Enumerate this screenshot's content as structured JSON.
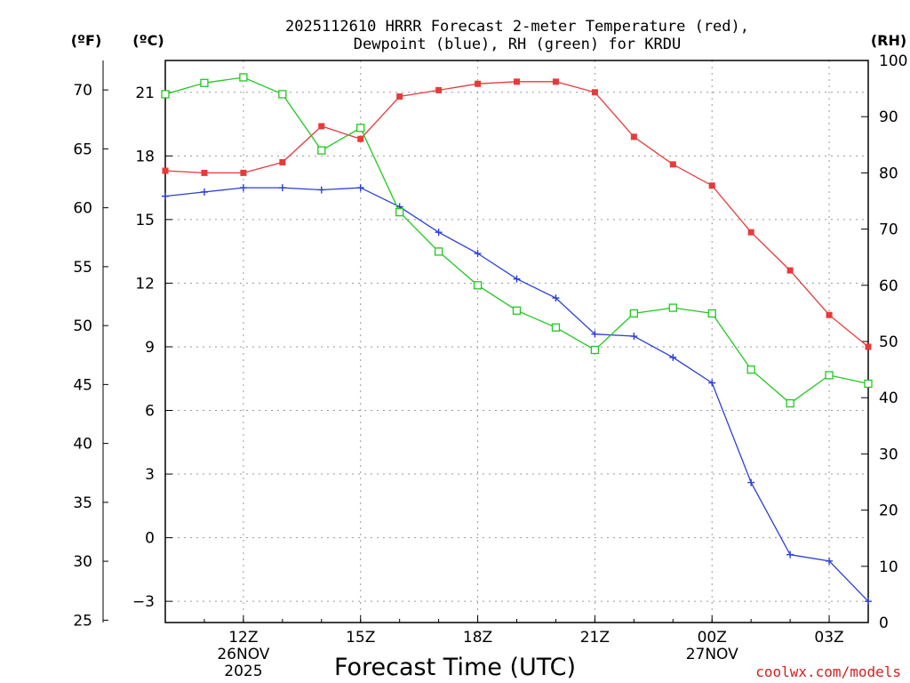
{
  "chart_data": {
    "type": "line",
    "title_line1": "2025112610 HRRR Forecast 2-meter Temperature (red),",
    "title_line2": "Dewpoint (blue), RH (green) for KRDU",
    "xlabel": "Forecast Time (UTC)",
    "credit": "coolwx.com/models",
    "unit_labels": {
      "fahrenheit": "(ºF)",
      "celsius": "(ºC)",
      "rh": "(RH)"
    },
    "x_hours": [
      10,
      11,
      12,
      13,
      14,
      15,
      16,
      17,
      18,
      19,
      20,
      21,
      22,
      23,
      24,
      25,
      26,
      27,
      28
    ],
    "xlim": [
      10,
      28
    ],
    "x_ticks": [
      {
        "hour": 12,
        "label": "12Z",
        "date": "26NOV",
        "year": "2025"
      },
      {
        "hour": 15,
        "label": "15Z",
        "date": "",
        "year": ""
      },
      {
        "hour": 18,
        "label": "18Z",
        "date": "",
        "year": ""
      },
      {
        "hour": 21,
        "label": "21Z",
        "date": "",
        "year": ""
      },
      {
        "hour": 24,
        "label": "00Z",
        "date": "27NOV",
        "year": ""
      },
      {
        "hour": 27,
        "label": "03Z",
        "date": "",
        "year": ""
      }
    ],
    "celsius_axis": {
      "ylim": [
        -4,
        22.5
      ],
      "ticks": [
        "-3",
        "0",
        "3",
        "6",
        "9",
        "12",
        "15",
        "18",
        "21"
      ]
    },
    "fahrenheit_axis": {
      "ticks": [
        "25",
        "30",
        "35",
        "40",
        "45",
        "50",
        "55",
        "60",
        "65",
        "70"
      ]
    },
    "rh_axis": {
      "ylim": [
        0,
        100
      ],
      "ticks": [
        "0",
        "10",
        "20",
        "30",
        "40",
        "50",
        "60",
        "70",
        "80",
        "90",
        "100"
      ]
    },
    "series": [
      {
        "name": "Temperature",
        "axis": "celsius",
        "color": "#e8393b",
        "marker": "filled-square",
        "values": [
          17.3,
          17.2,
          17.2,
          17.7,
          19.4,
          18.8,
          20.8,
          21.1,
          21.4,
          21.5,
          21.5,
          21.0,
          18.9,
          17.6,
          16.6,
          14.4,
          12.6,
          10.5,
          9.0
        ]
      },
      {
        "name": "Dewpoint",
        "axis": "celsius",
        "color": "#2b3fd6",
        "marker": "plus",
        "values": [
          16.1,
          16.3,
          16.5,
          16.5,
          16.4,
          16.5,
          15.6,
          14.4,
          13.4,
          12.2,
          11.3,
          9.6,
          9.5,
          8.5,
          7.3,
          2.6,
          -0.8,
          -1.1,
          -3.0
        ]
      },
      {
        "name": "RH",
        "axis": "rh",
        "color": "#20c820",
        "marker": "open-square",
        "values": [
          94,
          96,
          97,
          94,
          84,
          88,
          73,
          66,
          60,
          55.5,
          52.5,
          48.5,
          55,
          56,
          55,
          45,
          39,
          44,
          42.5
        ]
      }
    ]
  }
}
